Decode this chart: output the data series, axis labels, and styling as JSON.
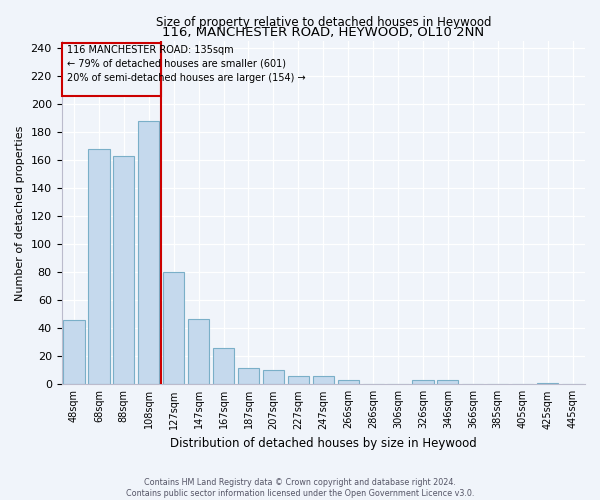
{
  "title": "116, MANCHESTER ROAD, HEYWOOD, OL10 2NN",
  "subtitle": "Size of property relative to detached houses in Heywood",
  "xlabel": "Distribution of detached houses by size in Heywood",
  "ylabel": "Number of detached properties",
  "bar_labels": [
    "48sqm",
    "68sqm",
    "88sqm",
    "108sqm",
    "127sqm",
    "147sqm",
    "167sqm",
    "187sqm",
    "207sqm",
    "227sqm",
    "247sqm",
    "266sqm",
    "286sqm",
    "306sqm",
    "326sqm",
    "346sqm",
    "366sqm",
    "385sqm",
    "405sqm",
    "425sqm",
    "445sqm"
  ],
  "bar_heights": [
    46,
    168,
    163,
    188,
    80,
    47,
    26,
    12,
    10,
    6,
    6,
    3,
    0,
    0,
    3,
    3,
    0,
    0,
    0,
    1,
    0
  ],
  "bar_color": "#c5d9ed",
  "bar_edge_color": "#7aafc8",
  "ref_line_x": 4,
  "annotation_title": "116 MANCHESTER ROAD: 135sqm",
  "annotation_line1": "← 79% of detached houses are smaller (601)",
  "annotation_line2": "20% of semi-detached houses are larger (154) →",
  "box_color": "#cc0000",
  "ylim": [
    0,
    245
  ],
  "yticks": [
    0,
    20,
    40,
    60,
    80,
    100,
    120,
    140,
    160,
    180,
    200,
    220,
    240
  ],
  "footer_line1": "Contains HM Land Registry data © Crown copyright and database right 2024.",
  "footer_line2": "Contains public sector information licensed under the Open Government Licence v3.0.",
  "bg_color": "#f0f4fa",
  "grid_color": "#ffffff"
}
